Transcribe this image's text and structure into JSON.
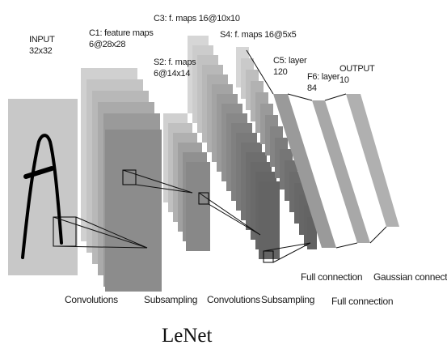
{
  "diagram": {
    "layers": {
      "input": {
        "title": "INPUT",
        "size": "32x32"
      },
      "c1": {
        "title": "C1: feature maps",
        "size": "6@28x28"
      },
      "s2": {
        "title": "S2: f. maps",
        "size": "6@14x14"
      },
      "c3": {
        "title": "C3: f. maps 16@10x10",
        "size": ""
      },
      "s4": {
        "title": "S4: f. maps 16@5x5",
        "size": ""
      },
      "c5": {
        "title": "C5: layer",
        "size": "120"
      },
      "f6": {
        "title": "F6: layer",
        "size": "84"
      },
      "output": {
        "title": "OUTPUT",
        "size": "10"
      }
    },
    "operations": {
      "conv1": "Convolutions",
      "sub1": "Subsampling",
      "conv2": "Convolutions",
      "sub2": "Subsampling",
      "full1": "Full connection",
      "full2": "Full connection",
      "gauss": "Gaussian connections"
    },
    "caption": "LeNet"
  },
  "colors": {
    "input_gray": "#c8c8c8",
    "map_light": "#d4d4d4",
    "map_dark": "#8a8a8a",
    "line": "#111111"
  }
}
